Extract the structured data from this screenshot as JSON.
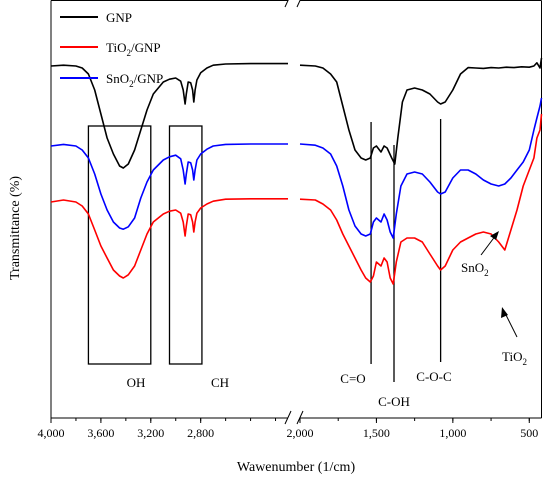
{
  "chart_data": {
    "type": "line",
    "xlabel": "Wawenumber (1/cm)",
    "ylabel": "Transmittance (%)",
    "x_reversed": true,
    "axis_break": [
      2000,
      2100
    ],
    "xlim_left": [
      4000,
      2100
    ],
    "xlim_right": [
      2000,
      420
    ],
    "x_ticks": [
      {
        "value": 4000,
        "label": "4,000"
      },
      {
        "value": 3600,
        "label": "3,600"
      },
      {
        "value": 3200,
        "label": "3,200"
      },
      {
        "value": 2800,
        "label": "2,800"
      },
      {
        "value": 2000,
        "label": "2,000"
      },
      {
        "value": 1500,
        "label": "1,500"
      },
      {
        "value": 1000,
        "label": "1,000"
      },
      {
        "value": 500,
        "label": "500"
      }
    ],
    "ylim": [
      0,
      1
    ],
    "legend_position": "top-left",
    "series": [
      {
        "name": "GNP",
        "name_sub": "",
        "name_rest": "",
        "color": "#000000",
        "points": [
          [
            4000,
            0.86
          ],
          [
            3900,
            0.862
          ],
          [
            3800,
            0.86
          ],
          [
            3750,
            0.855
          ],
          [
            3700,
            0.84
          ],
          [
            3650,
            0.8
          ],
          [
            3600,
            0.74
          ],
          [
            3550,
            0.68
          ],
          [
            3500,
            0.64
          ],
          [
            3450,
            0.61
          ],
          [
            3420,
            0.605
          ],
          [
            3380,
            0.615
          ],
          [
            3330,
            0.65
          ],
          [
            3280,
            0.7
          ],
          [
            3230,
            0.75
          ],
          [
            3180,
            0.79
          ],
          [
            3100,
            0.82
          ],
          [
            3050,
            0.827
          ],
          [
            3000,
            0.83
          ],
          [
            2960,
            0.822
          ],
          [
            2940,
            0.8
          ],
          [
            2925,
            0.765
          ],
          [
            2915,
            0.79
          ],
          [
            2900,
            0.82
          ],
          [
            2880,
            0.818
          ],
          [
            2865,
            0.8
          ],
          [
            2855,
            0.77
          ],
          [
            2845,
            0.8
          ],
          [
            2830,
            0.825
          ],
          [
            2800,
            0.843
          ],
          [
            2750,
            0.855
          ],
          [
            2700,
            0.862
          ],
          [
            2600,
            0.865
          ],
          [
            2400,
            0.866
          ],
          [
            2200,
            0.866
          ],
          [
            2100,
            0.866
          ],
          [
            2000,
            0.862
          ],
          [
            1900,
            0.86
          ],
          [
            1850,
            0.855
          ],
          [
            1800,
            0.84
          ],
          [
            1760,
            0.82
          ],
          [
            1720,
            0.76
          ],
          [
            1680,
            0.7
          ],
          [
            1640,
            0.65
          ],
          [
            1600,
            0.63
          ],
          [
            1570,
            0.625
          ],
          [
            1540,
            0.63
          ],
          [
            1520,
            0.655
          ],
          [
            1500,
            0.66
          ],
          [
            1470,
            0.645
          ],
          [
            1450,
            0.66
          ],
          [
            1430,
            0.655
          ],
          [
            1400,
            0.63
          ],
          [
            1380,
            0.615
          ],
          [
            1360,
            0.68
          ],
          [
            1330,
            0.77
          ],
          [
            1300,
            0.8
          ],
          [
            1250,
            0.805
          ],
          [
            1200,
            0.8
          ],
          [
            1150,
            0.79
          ],
          [
            1100,
            0.77
          ],
          [
            1080,
            0.765
          ],
          [
            1050,
            0.77
          ],
          [
            1000,
            0.8
          ],
          [
            950,
            0.84
          ],
          [
            900,
            0.856
          ],
          [
            850,
            0.855
          ],
          [
            800,
            0.854
          ],
          [
            750,
            0.856
          ],
          [
            700,
            0.855
          ],
          [
            650,
            0.857
          ],
          [
            600,
            0.856
          ],
          [
            550,
            0.858
          ],
          [
            500,
            0.857
          ],
          [
            470,
            0.86
          ],
          [
            450,
            0.868
          ],
          [
            430,
            0.855
          ],
          [
            420,
            0.88
          ]
        ]
      },
      {
        "name": "TiO",
        "name_sub": "2",
        "name_rest": "/GNP",
        "color": "#ff0000",
        "points": [
          [
            4000,
            0.52
          ],
          [
            3900,
            0.525
          ],
          [
            3800,
            0.52
          ],
          [
            3750,
            0.51
          ],
          [
            3700,
            0.49
          ],
          [
            3650,
            0.45
          ],
          [
            3600,
            0.41
          ],
          [
            3550,
            0.38
          ],
          [
            3500,
            0.35
          ],
          [
            3450,
            0.335
          ],
          [
            3420,
            0.33
          ],
          [
            3380,
            0.338
          ],
          [
            3330,
            0.36
          ],
          [
            3280,
            0.4
          ],
          [
            3230,
            0.44
          ],
          [
            3180,
            0.47
          ],
          [
            3100,
            0.49
          ],
          [
            3050,
            0.497
          ],
          [
            3000,
            0.5
          ],
          [
            2960,
            0.492
          ],
          [
            2940,
            0.47
          ],
          [
            2925,
            0.435
          ],
          [
            2915,
            0.46
          ],
          [
            2900,
            0.49
          ],
          [
            2880,
            0.488
          ],
          [
            2865,
            0.47
          ],
          [
            2855,
            0.445
          ],
          [
            2845,
            0.47
          ],
          [
            2830,
            0.492
          ],
          [
            2800,
            0.505
          ],
          [
            2750,
            0.515
          ],
          [
            2700,
            0.522
          ],
          [
            2600,
            0.527
          ],
          [
            2400,
            0.528
          ],
          [
            2200,
            0.528
          ],
          [
            2100,
            0.528
          ],
          [
            2000,
            0.527
          ],
          [
            1900,
            0.525
          ],
          [
            1850,
            0.515
          ],
          [
            1800,
            0.5
          ],
          [
            1760,
            0.475
          ],
          [
            1720,
            0.44
          ],
          [
            1680,
            0.41
          ],
          [
            1640,
            0.38
          ],
          [
            1600,
            0.35
          ],
          [
            1570,
            0.33
          ],
          [
            1540,
            0.32
          ],
          [
            1520,
            0.335
          ],
          [
            1500,
            0.37
          ],
          [
            1470,
            0.36
          ],
          [
            1450,
            0.38
          ],
          [
            1430,
            0.37
          ],
          [
            1410,
            0.33
          ],
          [
            1390,
            0.315
          ],
          [
            1370,
            0.37
          ],
          [
            1340,
            0.42
          ],
          [
            1300,
            0.43
          ],
          [
            1250,
            0.43
          ],
          [
            1200,
            0.42
          ],
          [
            1150,
            0.39
          ],
          [
            1100,
            0.36
          ],
          [
            1080,
            0.35
          ],
          [
            1050,
            0.36
          ],
          [
            1000,
            0.4
          ],
          [
            950,
            0.42
          ],
          [
            900,
            0.43
          ],
          [
            850,
            0.44
          ],
          [
            800,
            0.445
          ],
          [
            750,
            0.44
          ],
          [
            700,
            0.42
          ],
          [
            660,
            0.4
          ],
          [
            620,
            0.45
          ],
          [
            580,
            0.5
          ],
          [
            540,
            0.56
          ],
          [
            500,
            0.6
          ],
          [
            470,
            0.63
          ],
          [
            450,
            0.68
          ],
          [
            430,
            0.7
          ],
          [
            420,
            0.74
          ]
        ]
      },
      {
        "name": "SnO",
        "name_sub": "2",
        "name_rest": "/GNP",
        "color": "#0000ff",
        "points": [
          [
            4000,
            0.66
          ],
          [
            3900,
            0.664
          ],
          [
            3800,
            0.66
          ],
          [
            3750,
            0.65
          ],
          [
            3700,
            0.63
          ],
          [
            3650,
            0.59
          ],
          [
            3600,
            0.54
          ],
          [
            3550,
            0.5
          ],
          [
            3500,
            0.47
          ],
          [
            3450,
            0.455
          ],
          [
            3420,
            0.452
          ],
          [
            3380,
            0.458
          ],
          [
            3330,
            0.48
          ],
          [
            3280,
            0.53
          ],
          [
            3230,
            0.57
          ],
          [
            3180,
            0.6
          ],
          [
            3100,
            0.625
          ],
          [
            3050,
            0.633
          ],
          [
            3000,
            0.637
          ],
          [
            2960,
            0.628
          ],
          [
            2940,
            0.6
          ],
          [
            2925,
            0.565
          ],
          [
            2915,
            0.59
          ],
          [
            2900,
            0.62
          ],
          [
            2880,
            0.618
          ],
          [
            2865,
            0.6
          ],
          [
            2855,
            0.575
          ],
          [
            2845,
            0.6
          ],
          [
            2830,
            0.625
          ],
          [
            2800,
            0.64
          ],
          [
            2750,
            0.652
          ],
          [
            2700,
            0.66
          ],
          [
            2600,
            0.664
          ],
          [
            2400,
            0.665
          ],
          [
            2200,
            0.665
          ],
          [
            2100,
            0.665
          ],
          [
            2000,
            0.665
          ],
          [
            1900,
            0.662
          ],
          [
            1850,
            0.655
          ],
          [
            1800,
            0.64
          ],
          [
            1760,
            0.61
          ],
          [
            1720,
            0.56
          ],
          [
            1680,
            0.5
          ],
          [
            1640,
            0.46
          ],
          [
            1600,
            0.44
          ],
          [
            1570,
            0.435
          ],
          [
            1540,
            0.44
          ],
          [
            1520,
            0.47
          ],
          [
            1500,
            0.48
          ],
          [
            1470,
            0.47
          ],
          [
            1450,
            0.49
          ],
          [
            1430,
            0.475
          ],
          [
            1410,
            0.445
          ],
          [
            1390,
            0.43
          ],
          [
            1370,
            0.49
          ],
          [
            1340,
            0.56
          ],
          [
            1300,
            0.59
          ],
          [
            1250,
            0.595
          ],
          [
            1200,
            0.59
          ],
          [
            1150,
            0.57
          ],
          [
            1100,
            0.545
          ],
          [
            1080,
            0.54
          ],
          [
            1050,
            0.545
          ],
          [
            1000,
            0.58
          ],
          [
            950,
            0.6
          ],
          [
            900,
            0.6
          ],
          [
            850,
            0.59
          ],
          [
            800,
            0.575
          ],
          [
            750,
            0.565
          ],
          [
            700,
            0.56
          ],
          [
            660,
            0.565
          ],
          [
            620,
            0.58
          ],
          [
            580,
            0.6
          ],
          [
            540,
            0.62
          ],
          [
            500,
            0.65
          ],
          [
            470,
            0.7
          ],
          [
            450,
            0.73
          ],
          [
            430,
            0.76
          ],
          [
            420,
            0.78
          ]
        ]
      }
    ],
    "boxes": [
      {
        "label": "OH",
        "x_from": 3700,
        "x_to": 3200
      },
      {
        "label": "CH",
        "x_from": 3050,
        "x_to": 2790
      }
    ],
    "vlines": [
      {
        "label": "C=O",
        "x": 1535
      },
      {
        "label": "C-OH",
        "x": 1385
      },
      {
        "label": "C-O-C",
        "x": 1080
      }
    ],
    "arrows": [
      {
        "label": "SnO",
        "label_sub": "2"
      },
      {
        "label": "TiO",
        "label_sub": "2"
      }
    ]
  }
}
